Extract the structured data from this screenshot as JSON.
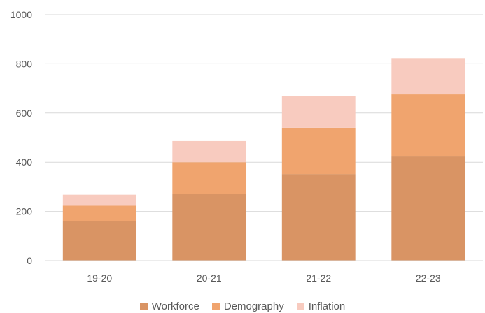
{
  "chart_data": {
    "type": "bar",
    "stacked": true,
    "categories": [
      "19-20",
      "20-21",
      "21-22",
      "22-23"
    ],
    "series": [
      {
        "name": "Workforce",
        "color": "#d99464",
        "values": [
          160,
          272,
          352,
          426
        ]
      },
      {
        "name": "Demography",
        "color": "#f0a46e",
        "values": [
          63,
          128,
          188,
          250
        ]
      },
      {
        "name": "Inflation",
        "color": "#f8cbbf",
        "values": [
          45,
          86,
          130,
          147
        ]
      }
    ],
    "title": "",
    "xlabel": "",
    "ylabel": "",
    "ylim": [
      0,
      1000
    ],
    "yticks": [
      0,
      200,
      400,
      600,
      800,
      1000
    ],
    "grid": true,
    "legend_position": "bottom"
  }
}
